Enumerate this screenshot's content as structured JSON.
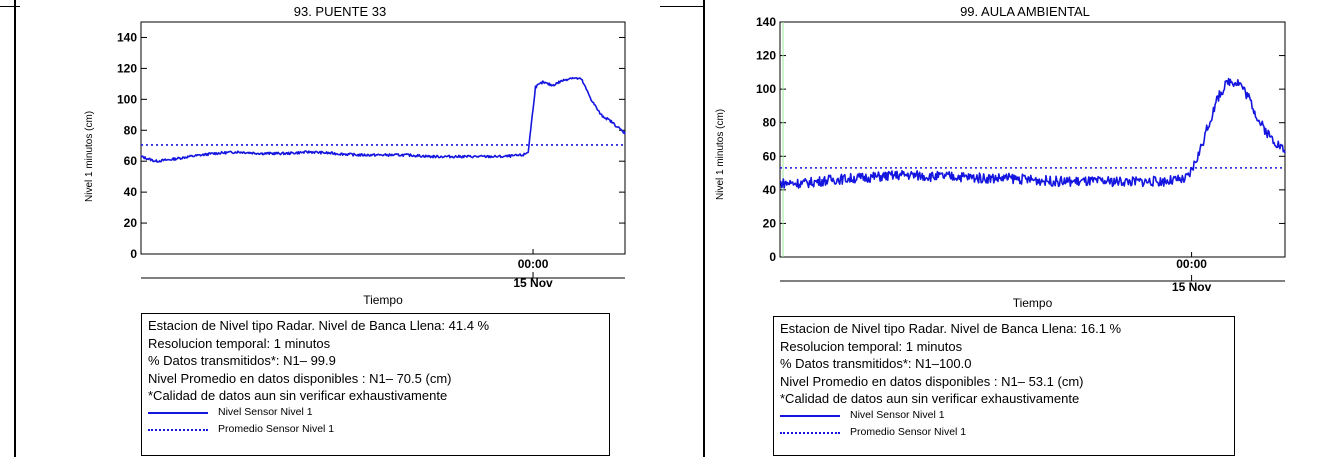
{
  "chart_data": [
    {
      "type": "line",
      "title": "93. PUENTE 33",
      "xlabel": "Tiempo",
      "ylabel": "Nivel 1 minutos (cm)",
      "ylim": [
        0,
        150
      ],
      "yticks": [
        0,
        20,
        40,
        60,
        80,
        100,
        120,
        140
      ],
      "x_tick_label": "00:00",
      "x_date_label": "15 Nov",
      "series": [
        {
          "name": "Nivel Sensor Nivel 1",
          "style": "solid",
          "x": [
            0,
            0.03,
            0.06,
            0.1,
            0.15,
            0.2,
            0.25,
            0.3,
            0.35,
            0.4,
            0.45,
            0.5,
            0.55,
            0.6,
            0.65,
            0.7,
            0.75,
            0.79,
            0.8,
            0.805,
            0.815,
            0.83,
            0.85,
            0.87,
            0.89,
            0.91,
            0.93,
            0.95,
            0.97,
            1.0
          ],
          "values": [
            63,
            60,
            61,
            63,
            65,
            66,
            65,
            65,
            66,
            65,
            64,
            64,
            64,
            63,
            63,
            63,
            63,
            64,
            66,
            80,
            108,
            111,
            109,
            112,
            114,
            113,
            100,
            90,
            86,
            78
          ]
        },
        {
          "name": "Promedio Sensor Nivel 1",
          "style": "dotted",
          "x": [
            0,
            1
          ],
          "values": [
            70.5,
            70.5
          ]
        }
      ],
      "info": [
        "Estacion de Nivel tipo Radar. Nivel de Banca Llena: 41.4 %",
        "Resolucion temporal: 1 minutos",
        "% Datos transmitidos*: N1– 99.9",
        "Nivel Promedio en datos disponibles : N1– 70.5 (cm)",
        "*Calidad de datos aun sin verificar exhaustivamente"
      ],
      "colors": {
        "line": "#1515e0"
      }
    },
    {
      "type": "line",
      "title": "99. AULA AMBIENTAL",
      "xlabel": "Tiempo",
      "ylabel": "Nivel 1 minutos (cm)",
      "ylim": [
        0,
        140
      ],
      "yticks": [
        0,
        20,
        40,
        60,
        80,
        100,
        120,
        140
      ],
      "x_tick_label": "00:00",
      "x_date_label": "15 Nov",
      "series": [
        {
          "name": "Nivel Sensor Nivel 1",
          "style": "solid",
          "x": [
            0,
            0.05,
            0.1,
            0.15,
            0.2,
            0.25,
            0.3,
            0.35,
            0.4,
            0.45,
            0.5,
            0.55,
            0.6,
            0.65,
            0.7,
            0.75,
            0.8,
            0.81,
            0.83,
            0.85,
            0.87,
            0.89,
            0.91,
            0.93,
            0.95,
            0.97,
            1.0
          ],
          "values": [
            44,
            44,
            46,
            47,
            48,
            49,
            48,
            48,
            47,
            47,
            46,
            45,
            45,
            45,
            45,
            45,
            46,
            48,
            62,
            80,
            97,
            105,
            104,
            94,
            80,
            72,
            63
          ],
          "noise": 3
        },
        {
          "name": "Promedio Sensor Nivel 1",
          "style": "dotted",
          "x": [
            0,
            1
          ],
          "values": [
            53.1,
            53.1
          ]
        }
      ],
      "info": [
        "Estacion de Nivel tipo Radar. Nivel de Banca Llena: 16.1 %",
        "Resolucion temporal: 1 minutos",
        "% Datos transmitidos*: N1–100.0",
        "Nivel Promedio en datos disponibles : N1– 53.1 (cm)",
        "*Calidad de datos aun sin verificar exhaustivamente"
      ],
      "colors": {
        "line": "#1515e0",
        "start_marker": "#9be89b"
      }
    }
  ]
}
